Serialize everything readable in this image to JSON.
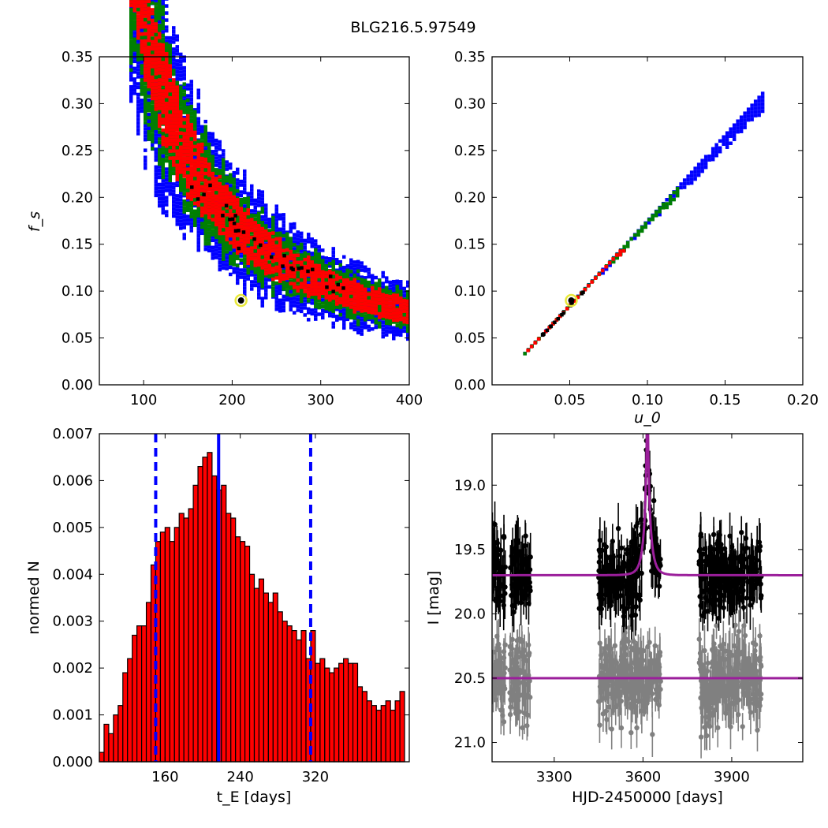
{
  "figure": {
    "title": "BLG216.5.97549"
  },
  "chart_data": [
    {
      "type": "heatmap",
      "xlabel": "",
      "ylabel": "f_s",
      "xlim": [
        50,
        400
      ],
      "ylim": [
        0,
        0.35
      ],
      "xticks": [
        "100",
        "200",
        "300",
        "400"
      ],
      "yticks": [
        "0.00",
        "0.05",
        "0.10",
        "0.15",
        "0.20",
        "0.25",
        "0.30",
        "0.35"
      ],
      "levels": [
        "black",
        "red",
        "green",
        "blue"
      ],
      "best_fit": {
        "x": 210,
        "y": 0.09
      },
      "colors": {
        "black": "#000000",
        "red": "#ff0000",
        "green": "#008000",
        "blue": "#0000ff"
      }
    },
    {
      "type": "heatmap",
      "xlabel": "u_0",
      "ylabel": "",
      "xlim": [
        0,
        0.2
      ],
      "ylim": [
        0,
        0.35
      ],
      "xticks": [
        "0.05",
        "0.10",
        "0.15",
        "0.20"
      ],
      "yticks": [
        "0.00",
        "0.05",
        "0.10",
        "0.15",
        "0.20",
        "0.25",
        "0.30",
        "0.35"
      ],
      "best_fit": {
        "x": 0.051,
        "y": 0.09
      },
      "colors": {
        "black": "#000000",
        "red": "#ff0000",
        "green": "#008000",
        "blue": "#0000ff"
      }
    },
    {
      "type": "bar",
      "xlabel": "t_E [days]",
      "ylabel": "normed N",
      "xlim": [
        90,
        420
      ],
      "ylim": [
        0,
        0.007
      ],
      "xticks": [
        "160",
        "240",
        "320"
      ],
      "yticks": [
        "0.000",
        "0.001",
        "0.002",
        "0.003",
        "0.004",
        "0.005",
        "0.006",
        "0.007"
      ],
      "bin_start": 90,
      "bin_width": 5,
      "values": [
        0.0002,
        0.0008,
        0.0006,
        0.001,
        0.0012,
        0.0019,
        0.0022,
        0.0027,
        0.0029,
        0.0029,
        0.0034,
        0.0042,
        0.0047,
        0.0049,
        0.005,
        0.0047,
        0.005,
        0.0053,
        0.0052,
        0.0054,
        0.0059,
        0.0063,
        0.0065,
        0.0066,
        0.0061,
        0.0058,
        0.0059,
        0.0053,
        0.0052,
        0.0048,
        0.0047,
        0.0046,
        0.004,
        0.0037,
        0.0039,
        0.0036,
        0.0034,
        0.0036,
        0.0032,
        0.003,
        0.0029,
        0.0028,
        0.0026,
        0.0028,
        0.0022,
        0.0028,
        0.0021,
        0.0022,
        0.002,
        0.0019,
        0.002,
        0.0021,
        0.0022,
        0.0021,
        0.0021,
        0.0016,
        0.0015,
        0.0013,
        0.0012,
        0.0011,
        0.0012,
        0.0013,
        0.0011,
        0.0013,
        0.0015
      ],
      "lines": {
        "median": 217,
        "lower": 150,
        "upper": 315
      },
      "colors": {
        "bar": "#ff0000",
        "edge": "#000000",
        "lines": "#0000ff"
      }
    },
    {
      "type": "scatter",
      "xlabel": "HJD-2450000 [days]",
      "ylabel": "I [mag]",
      "xlim": [
        3090,
        4140
      ],
      "ylim": [
        21.15,
        18.6
      ],
      "xticks": [
        "3300",
        "3600",
        "3900"
      ],
      "yticks": [
        "19.0",
        "19.5",
        "20.0",
        "20.5",
        "21.0"
      ],
      "model": {
        "t0": 3615,
        "tE": 22,
        "base": 19.7,
        "peak": 18.6
      },
      "series": [
        {
          "base": 19.7,
          "color": "#000000"
        },
        {
          "base": 20.5,
          "color": "#808080"
        }
      ],
      "colors": {
        "model": "#9b1f9b",
        "data": "#000000",
        "aux": "#808080"
      }
    }
  ]
}
